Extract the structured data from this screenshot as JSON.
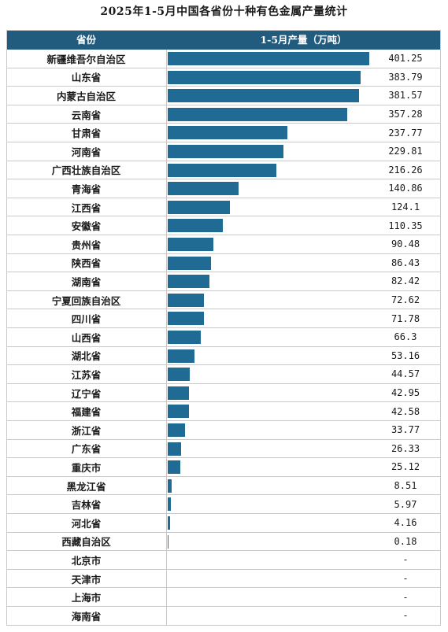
{
  "chart_data": {
    "type": "bar",
    "orientation": "horizontal",
    "title": "2025年1-5月中国各省份十种有色金属产量统计",
    "column_headers": [
      "省份",
      "1-5月产量（万吨）"
    ],
    "categories": [
      "新疆维吾尔自治区",
      "山东省",
      "内蒙古自治区",
      "云南省",
      "甘肃省",
      "河南省",
      "广西壮族自治区",
      "青海省",
      "江西省",
      "安徽省",
      "贵州省",
      "陕西省",
      "湖南省",
      "宁夏回族自治区",
      "四川省",
      "山西省",
      "湖北省",
      "江苏省",
      "辽宁省",
      "福建省",
      "浙江省",
      "广东省",
      "重庆市",
      "黑龙江省",
      "吉林省",
      "河北省",
      "西藏自治区",
      "北京市",
      "天津市",
      "上海市",
      "海南省"
    ],
    "values": [
      401.25,
      383.79,
      381.57,
      357.28,
      237.77,
      229.81,
      216.26,
      140.86,
      124.1,
      110.35,
      90.48,
      86.43,
      82.42,
      72.62,
      71.78,
      66.3,
      53.16,
      44.57,
      42.95,
      42.58,
      33.77,
      26.33,
      25.12,
      8.51,
      5.97,
      4.16,
      0.18,
      null,
      null,
      null,
      null
    ],
    "value_labels": [
      "401.25",
      "383.79",
      "381.57",
      "357.28",
      "237.77",
      "229.81",
      "216.26",
      "140.86",
      "124.1",
      "110.35",
      "90.48",
      "86.43",
      "82.42",
      "72.62",
      "71.78",
      "66.3",
      "53.16",
      "44.57",
      "42.95",
      "42.58",
      "33.77",
      "26.33",
      "25.12",
      "8.51",
      "5.97",
      "4.16",
      "0.18",
      "-",
      "-",
      "-",
      "-"
    ],
    "xlim": [
      0,
      401.25
    ],
    "colors": {
      "header": "#215c7e",
      "bar": "#1f6b93"
    }
  }
}
